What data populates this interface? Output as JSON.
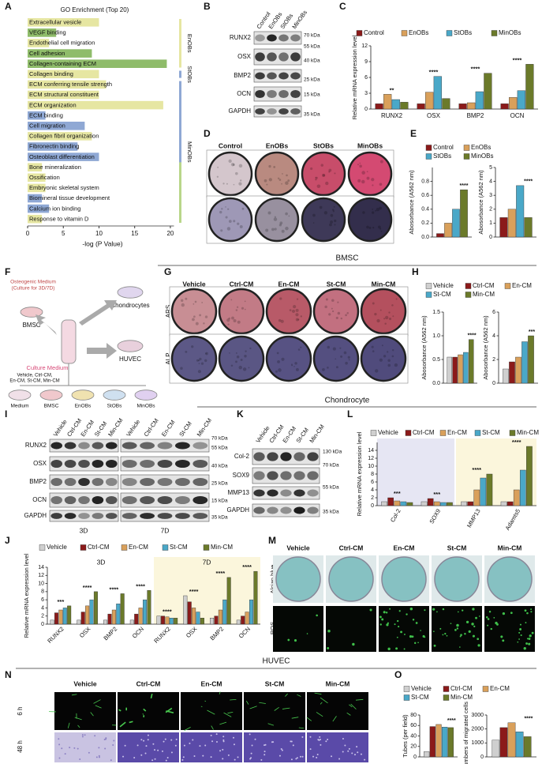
{
  "sections": [
    "BMSC",
    "Chondrocyte",
    "HUVEC"
  ],
  "panels": {
    "A": {
      "label": "A",
      "title": "GO Enrichment (Top 20)",
      "xlabel": "-log (P Value)",
      "xlim": [
        0,
        21
      ],
      "xticks": [
        0,
        5,
        10,
        15,
        20
      ],
      "terms": [
        "Extracellular vesicle",
        "VEGF binding",
        "Endothelial cell migration",
        "Cell adhesion",
        "Collagen-containing ECM",
        "Collagen binding",
        "ECM conferring tensile strength",
        "ECM structural constituent",
        "ECM organization",
        "ECM binding",
        "Cell migration",
        "Collagen fibril organization",
        "Fibronectin binding",
        "Osteoblast differentiation",
        "Bone mineralization",
        "Ossification",
        "Embryonic skeletal system",
        "Biomineral tissue development",
        "Calcium ion binding",
        "Response to vitamin D"
      ],
      "values": [
        10,
        4,
        3,
        9,
        19.5,
        10,
        11,
        10,
        19,
        2.5,
        8,
        9,
        7,
        10,
        2,
        2.5,
        2.5,
        2,
        3,
        2
      ],
      "colors": [
        "#e6e6a2",
        "#8fbc6a",
        "#e6e6a2",
        "#8fbc6a",
        "#8fbc6a",
        "#e6e6a2",
        "#e6e6a2",
        "#e6e6a2",
        "#e6e6a2",
        "#8fa8d4",
        "#8fa8d4",
        "#e6e6a2",
        "#8fa8d4",
        "#8fa8d4",
        "#e6e6a2",
        "#e6e6a2",
        "#e6e6a2",
        "#8fa8d4",
        "#8fa8d4",
        "#e6e6a2"
      ],
      "groups": [
        "EnOBs",
        "StOBs",
        "MinOBs"
      ]
    },
    "B": {
      "label": "B",
      "lanes": [
        "Control",
        "EnOBs",
        "StOBs",
        "MinOBs"
      ],
      "proteins": [
        "RUNX2",
        "OSX",
        "BMP2",
        "OCN",
        "GAPDH"
      ],
      "markers": [
        "70 kDa",
        "55 kDa",
        "40 kDa",
        "25 kDa",
        "15 kDa",
        "35 kDa"
      ]
    },
    "C": {
      "label": "C",
      "legend": [
        {
          "name": "Control",
          "color": "#8b1a1a"
        },
        {
          "name": "EnOBs",
          "color": "#d9a05b"
        },
        {
          "name": "StOBs",
          "color": "#4aa8c8"
        },
        {
          "name": "MinOBs",
          "color": "#6b7a2a"
        }
      ],
      "chart": {
        "type": "bar",
        "ylabel": "Relative mRNA expression level",
        "categories": [
          "RUNX2",
          "OSX",
          "BMP2",
          "OCN"
        ],
        "ylim": [
          0,
          12
        ],
        "yticks": [
          0,
          3,
          6,
          9,
          12
        ],
        "values": [
          [
            1,
            1,
            1,
            1
          ],
          [
            2.8,
            3.2,
            1.2,
            2.2
          ],
          [
            1.8,
            6.2,
            3.3,
            3.5
          ],
          [
            1.3,
            2,
            6.8,
            8.5
          ]
        ],
        "annotations": [
          "**",
          "****",
          "****",
          "****"
        ]
      }
    },
    "D": {
      "label": "D",
      "columns": [
        "Control",
        "EnOBs",
        "StOBs",
        "MinOBs"
      ],
      "rows": [
        "ARS",
        "ALP"
      ]
    },
    "E": {
      "label": "E",
      "legend": [
        {
          "name": "Control",
          "color": "#8b1a1a"
        },
        {
          "name": "EnOBs",
          "color": "#d9a05b"
        },
        {
          "name": "StOBs",
          "color": "#4aa8c8"
        },
        {
          "name": "MinOBs",
          "color": "#6b7a2a"
        }
      ],
      "charts": [
        {
          "type": "bar",
          "ylabel": "Abosorbance (A562 nm)",
          "ylim": [
            0,
            1
          ],
          "yticks": [
            {
              "value": 0,
              "label": "0.0"
            },
            0.2,
            0.4,
            0.6,
            0.8
          ],
          "values": [
            0.05,
            0.2,
            0.4,
            0.68
          ],
          "annotation": "****"
        },
        {
          "type": "bar",
          "ylabel": "Abosorbance (A562 nm)",
          "ylim": [
            0,
            5
          ],
          "yticks": [
            0,
            1,
            2,
            3,
            4,
            5
          ],
          "values": [
            1.4,
            2,
            3.7,
            1.4
          ],
          "annotation": "****"
        }
      ]
    },
    "F": {
      "label": "F",
      "osteo": [
        "Osteogenic Medium",
        "(Culture for 3D/7D)"
      ],
      "cells": [
        "BMSC",
        "Chondrocytes",
        "HUVEC"
      ],
      "medium": "Culture Medium",
      "medium_groups": [
        "Vehicle, Ctrl-CM,",
        "En-CM, St-CM, Min-CM"
      ],
      "dishes": [
        "Medium",
        "BMSC",
        "EnOBs",
        "StOBs",
        "MinOBs"
      ]
    },
    "G": {
      "label": "G",
      "columns": [
        "Vehicle",
        "Ctrl-CM",
        "En-CM",
        "St-CM",
        "Min-CM"
      ],
      "rows": [
        "ARS",
        "ALP"
      ]
    },
    "H": {
      "label": "H",
      "legend": [
        {
          "name": "Vehicle",
          "color": "#cfcfcf"
        },
        {
          "name": "Ctrl-CM",
          "color": "#8b1a1a"
        },
        {
          "name": "En-CM",
          "color": "#d9a05b"
        },
        {
          "name": "St-CM",
          "color": "#4aa8c8"
        },
        {
          "name": "Min-CM",
          "color": "#6b7a2a"
        }
      ],
      "charts": [
        {
          "type": "bar",
          "ylabel": "Abosorbance (A562 nm)",
          "ylim": [
            0,
            1.5
          ],
          "yticks": [
            {
              "value": 0,
              "label": "0.0"
            },
            0.5,
            {
              "value": 1,
              "label": "1.0"
            },
            1.5
          ],
          "values": [
            0.55,
            0.55,
            0.6,
            0.65,
            0.92
          ],
          "annotation": "****"
        },
        {
          "type": "bar",
          "ylabel": "Abosorbance (A562 nm)",
          "ylim": [
            0,
            6
          ],
          "yticks": [
            0,
            2,
            4,
            6
          ],
          "values": [
            1.2,
            1.8,
            2.2,
            3.5,
            4
          ],
          "annotation": "***"
        }
      ]
    },
    "I": {
      "label": "I",
      "lanes": [
        "Vehicle",
        "Ctrl-CM",
        "En-CM",
        "St-CM",
        "Min-CM"
      ],
      "proteins": [
        "RUNX2",
        "OSX",
        "BMP2",
        "OCN",
        "GAPDH"
      ],
      "markers": [
        "70 kDa",
        "55 kDa",
        "40 kDa",
        "25 kDa",
        "15 kDa",
        "35 kDa"
      ],
      "periods": [
        "3D",
        "7D"
      ]
    },
    "K": {
      "label": "K",
      "lanes": [
        "Vehicle",
        "Ctrl-CM",
        "En-CM",
        "St-CM",
        "Min-CM"
      ],
      "proteins": [
        "Col-2",
        "SOX9",
        "MMP13",
        "GAPDH"
      ],
      "markers": [
        "130 kDa",
        "70 kDa",
        "55 kDa",
        "35 kDa"
      ]
    },
    "L": {
      "label": "L",
      "legend": [
        {
          "name": "Vehicle",
          "color": "#cfcfcf"
        },
        {
          "name": "Ctrl-CM",
          "color": "#8b1a1a"
        },
        {
          "name": "En-CM",
          "color": "#d9a05b"
        },
        {
          "name": "St-CM",
          "color": "#4aa8c8"
        },
        {
          "name": "Min-CM",
          "color": "#6b7a2a"
        }
      ],
      "chart": {
        "type": "bar",
        "ylabel": "Relative mRNA expression level",
        "categories": [
          "Col-2",
          "SOX9",
          "MMP13",
          "Adamts5"
        ],
        "ylim": [
          0,
          16
        ],
        "yticks": [
          0,
          2,
          4,
          6,
          8,
          10,
          12,
          14
        ],
        "values": [
          [
            1,
            1,
            1,
            1
          ],
          [
            2,
            1.8,
            1,
            1
          ],
          [
            1.2,
            1,
            4,
            4
          ],
          [
            1,
            0.8,
            7,
            9
          ],
          [
            0.8,
            0.8,
            8,
            15
          ]
        ],
        "annotations": [
          "***",
          "***",
          "****",
          "****"
        ]
      }
    },
    "J": {
      "label": "J",
      "legend": [
        {
          "name": "Vehicle",
          "color": "#cfcfcf"
        },
        {
          "name": "Ctrl-CM",
          "color": "#8b1a1a"
        },
        {
          "name": "En-CM",
          "color": "#d9a05b"
        },
        {
          "name": "St-CM",
          "color": "#4aa8c8"
        },
        {
          "name": "Min-CM",
          "color": "#6b7a2a"
        }
      ],
      "periods": [
        "3D",
        "7D"
      ],
      "chart": {
        "type": "bar",
        "ylabel": "Relative mRNA expression level",
        "categories": [
          "RUNX2",
          "OSX",
          "BMP2",
          "OCN",
          "RUNX2",
          "OSX",
          "BMP2",
          "OCN"
        ],
        "ylim": [
          0,
          14
        ],
        "yticks": [
          0,
          2,
          4,
          6,
          8,
          10,
          12,
          14
        ],
        "values": [
          [
            1,
            1,
            1,
            1,
            2,
            7,
            1.5,
            1
          ],
          [
            2.8,
            3,
            2.5,
            2.5,
            2,
            5.5,
            2,
            2
          ],
          [
            3.5,
            4.5,
            3.5,
            4,
            1.8,
            4,
            3.5,
            3
          ],
          [
            4,
            6,
            5,
            6,
            1.5,
            3,
            6,
            6
          ],
          [
            4.5,
            8,
            7.5,
            8.3,
            1.5,
            1.5,
            11.5,
            13
          ]
        ],
        "annotations": [
          "***",
          "****",
          "****",
          "****",
          "****",
          "****",
          "****",
          "****"
        ]
      }
    },
    "M": {
      "label": "M",
      "columns": [
        "Vehicle",
        "Ctrl-CM",
        "En-CM",
        "St-CM",
        "Min-CM"
      ],
      "rows": [
        "Alcian blue",
        "ROS"
      ]
    },
    "N": {
      "label": "N",
      "columns": [
        "Vehicle",
        "Ctrl-CM",
        "En-CM",
        "St-CM",
        "Min-CM"
      ],
      "rows": [
        "6 h",
        "48 h"
      ]
    },
    "O": {
      "label": "O",
      "legend": [
        {
          "name": "Vehicle",
          "color": "#cfcfcf"
        },
        {
          "name": "Ctrl-CM",
          "color": "#8b1a1a"
        },
        {
          "name": "En-CM",
          "color": "#d9a05b"
        },
        {
          "name": "St-CM",
          "color": "#4aa8c8"
        },
        {
          "name": "Min-CM",
          "color": "#6b7a2a"
        }
      ],
      "charts": [
        {
          "type": "bar",
          "ylabel": "Tubes (per field)",
          "ylim": [
            0,
            80
          ],
          "yticks": [
            0,
            20,
            40,
            60,
            80
          ],
          "values": [
            10,
            58,
            62,
            57,
            56
          ],
          "annotation": "****"
        },
        {
          "type": "bar",
          "ylabel": "Numbers of migrated cells",
          "ylim": [
            0,
            3000
          ],
          "yticks": [
            0,
            1000,
            2000,
            3000
          ],
          "values": [
            1200,
            2100,
            2450,
            1800,
            1450
          ],
          "annotation": "****"
        }
      ]
    }
  }
}
